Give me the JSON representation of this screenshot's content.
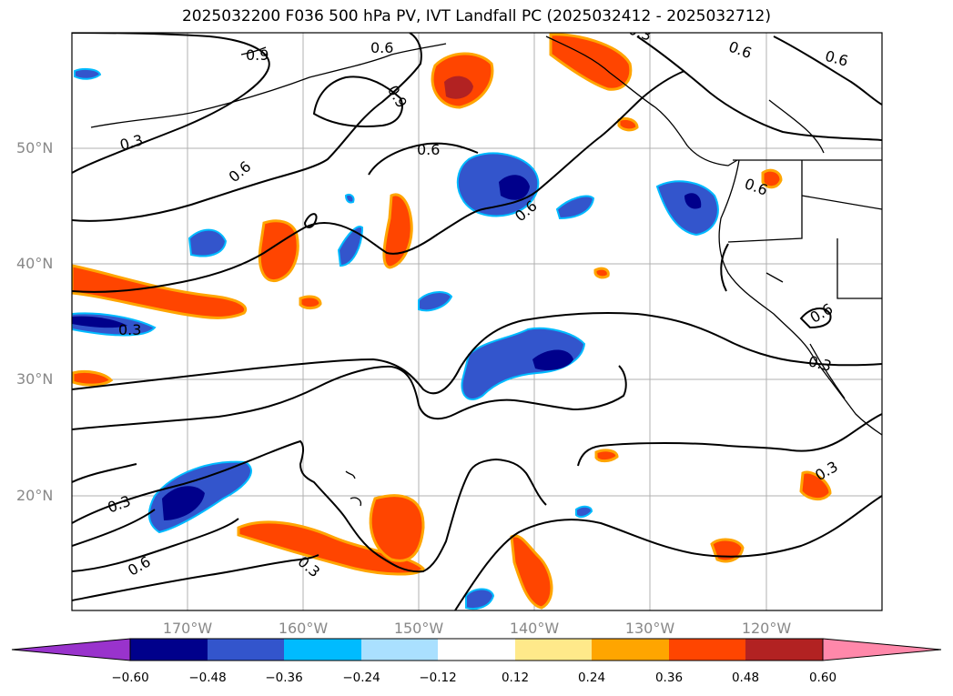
{
  "title": "2025032200 F036 500 hPa PV, IVT Landfall PC (2025032412 - 2025032712)",
  "map": {
    "lat_labels": [
      "50°N",
      "40°N",
      "30°N",
      "20°N"
    ],
    "lon_labels": [
      "170°W",
      "160°W",
      "150°W",
      "140°W",
      "130°W",
      "120°W"
    ],
    "contour_labels": [
      "0.9",
      "0.6",
      "0.9",
      "0.6",
      "0.6",
      "0.3",
      "0.6",
      "0.6",
      "0.6",
      "0.6",
      "0.3",
      "0.3",
      "0.6",
      "0.3",
      "0.3",
      "0.6",
      "0.3",
      "0.3"
    ]
  },
  "colorbar": {
    "colors": [
      "#9933cc",
      "#00008b",
      "#3355cc",
      "#00bbff",
      "#aae0ff",
      "#ffffff",
      "#ffe98a",
      "#ffa500",
      "#ff4500",
      "#b22222",
      "#ff88aa"
    ],
    "ticks": [
      "−0.60",
      "−0.48",
      "−0.36",
      "−0.24",
      "−0.12",
      "0.12",
      "0.24",
      "0.36",
      "0.48",
      "0.60"
    ]
  }
}
